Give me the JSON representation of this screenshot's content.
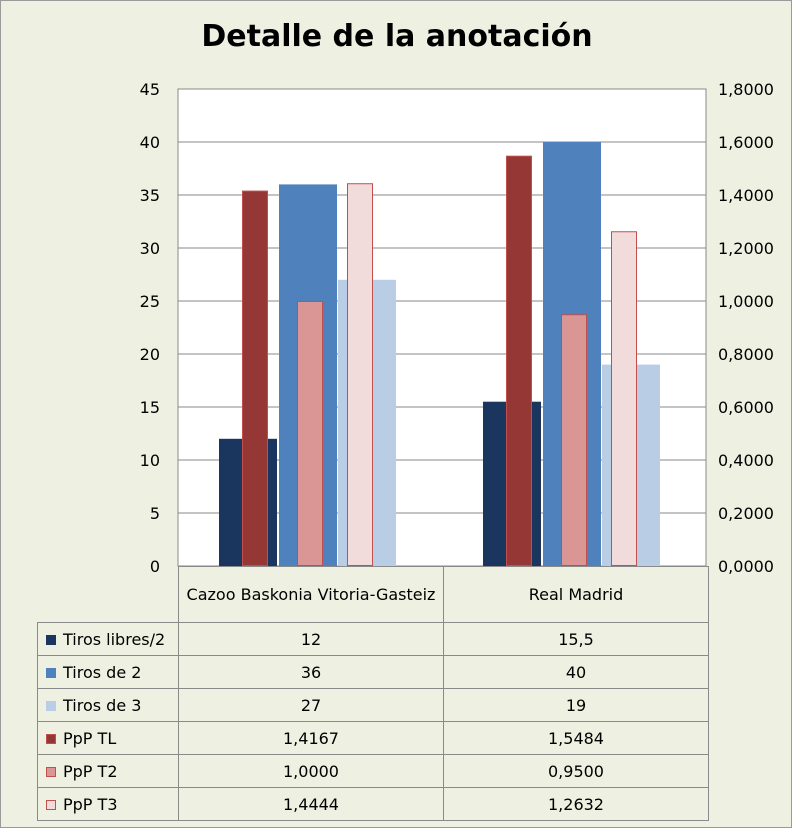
{
  "chart_data": {
    "type": "bar",
    "title": "Detalle de la anotación",
    "categories": [
      "Cazoo Baskonia Vitoria-Gasteiz",
      "Real Madrid"
    ],
    "series": [
      {
        "name": "Tiros libres/2",
        "axis": "left",
        "color": "#1a365f",
        "values": [
          12,
          15.5
        ],
        "labels": [
          "12",
          "15,5"
        ]
      },
      {
        "name": "PpP TL",
        "axis": "right",
        "color": "#953735",
        "values": [
          1.4167,
          1.5484
        ],
        "labels": [
          "1,4167",
          "1,5484"
        ]
      },
      {
        "name": "Tiros de 2",
        "axis": "left",
        "color": "#4f81bd",
        "values": [
          36,
          40
        ],
        "labels": [
          "36",
          "40"
        ]
      },
      {
        "name": "PpP T2",
        "axis": "right",
        "color": "#da9694",
        "values": [
          1.0,
          0.95
        ],
        "labels": [
          "1,0000",
          "0,9500"
        ]
      },
      {
        "name": "Tiros de 3",
        "axis": "left",
        "color": "#b9cde5",
        "values": [
          27,
          19
        ],
        "labels": [
          "27",
          "19"
        ]
      },
      {
        "name": "PpP T3",
        "axis": "right",
        "color": "#f2dcdb",
        "values": [
          1.4444,
          1.2632
        ],
        "labels": [
          "1,4444",
          "1,2632"
        ]
      }
    ],
    "table_order": [
      "Tiros libres/2",
      "Tiros de 2",
      "Tiros de 3",
      "PpP TL",
      "PpP T2",
      "PpP T3"
    ],
    "ylim_left": [
      0,
      45
    ],
    "ylim_right": [
      0,
      1.8
    ],
    "yticks_left": [
      "0",
      "5",
      "10",
      "15",
      "20",
      "25",
      "30",
      "35",
      "40",
      "45"
    ],
    "yticks_right": [
      "0,0000",
      "0,2000",
      "0,4000",
      "0,6000",
      "0,8000",
      "1,0000",
      "1,2000",
      "1,4000",
      "1,6000",
      "1,8000"
    ],
    "grid": true,
    "legend": "data-table"
  }
}
